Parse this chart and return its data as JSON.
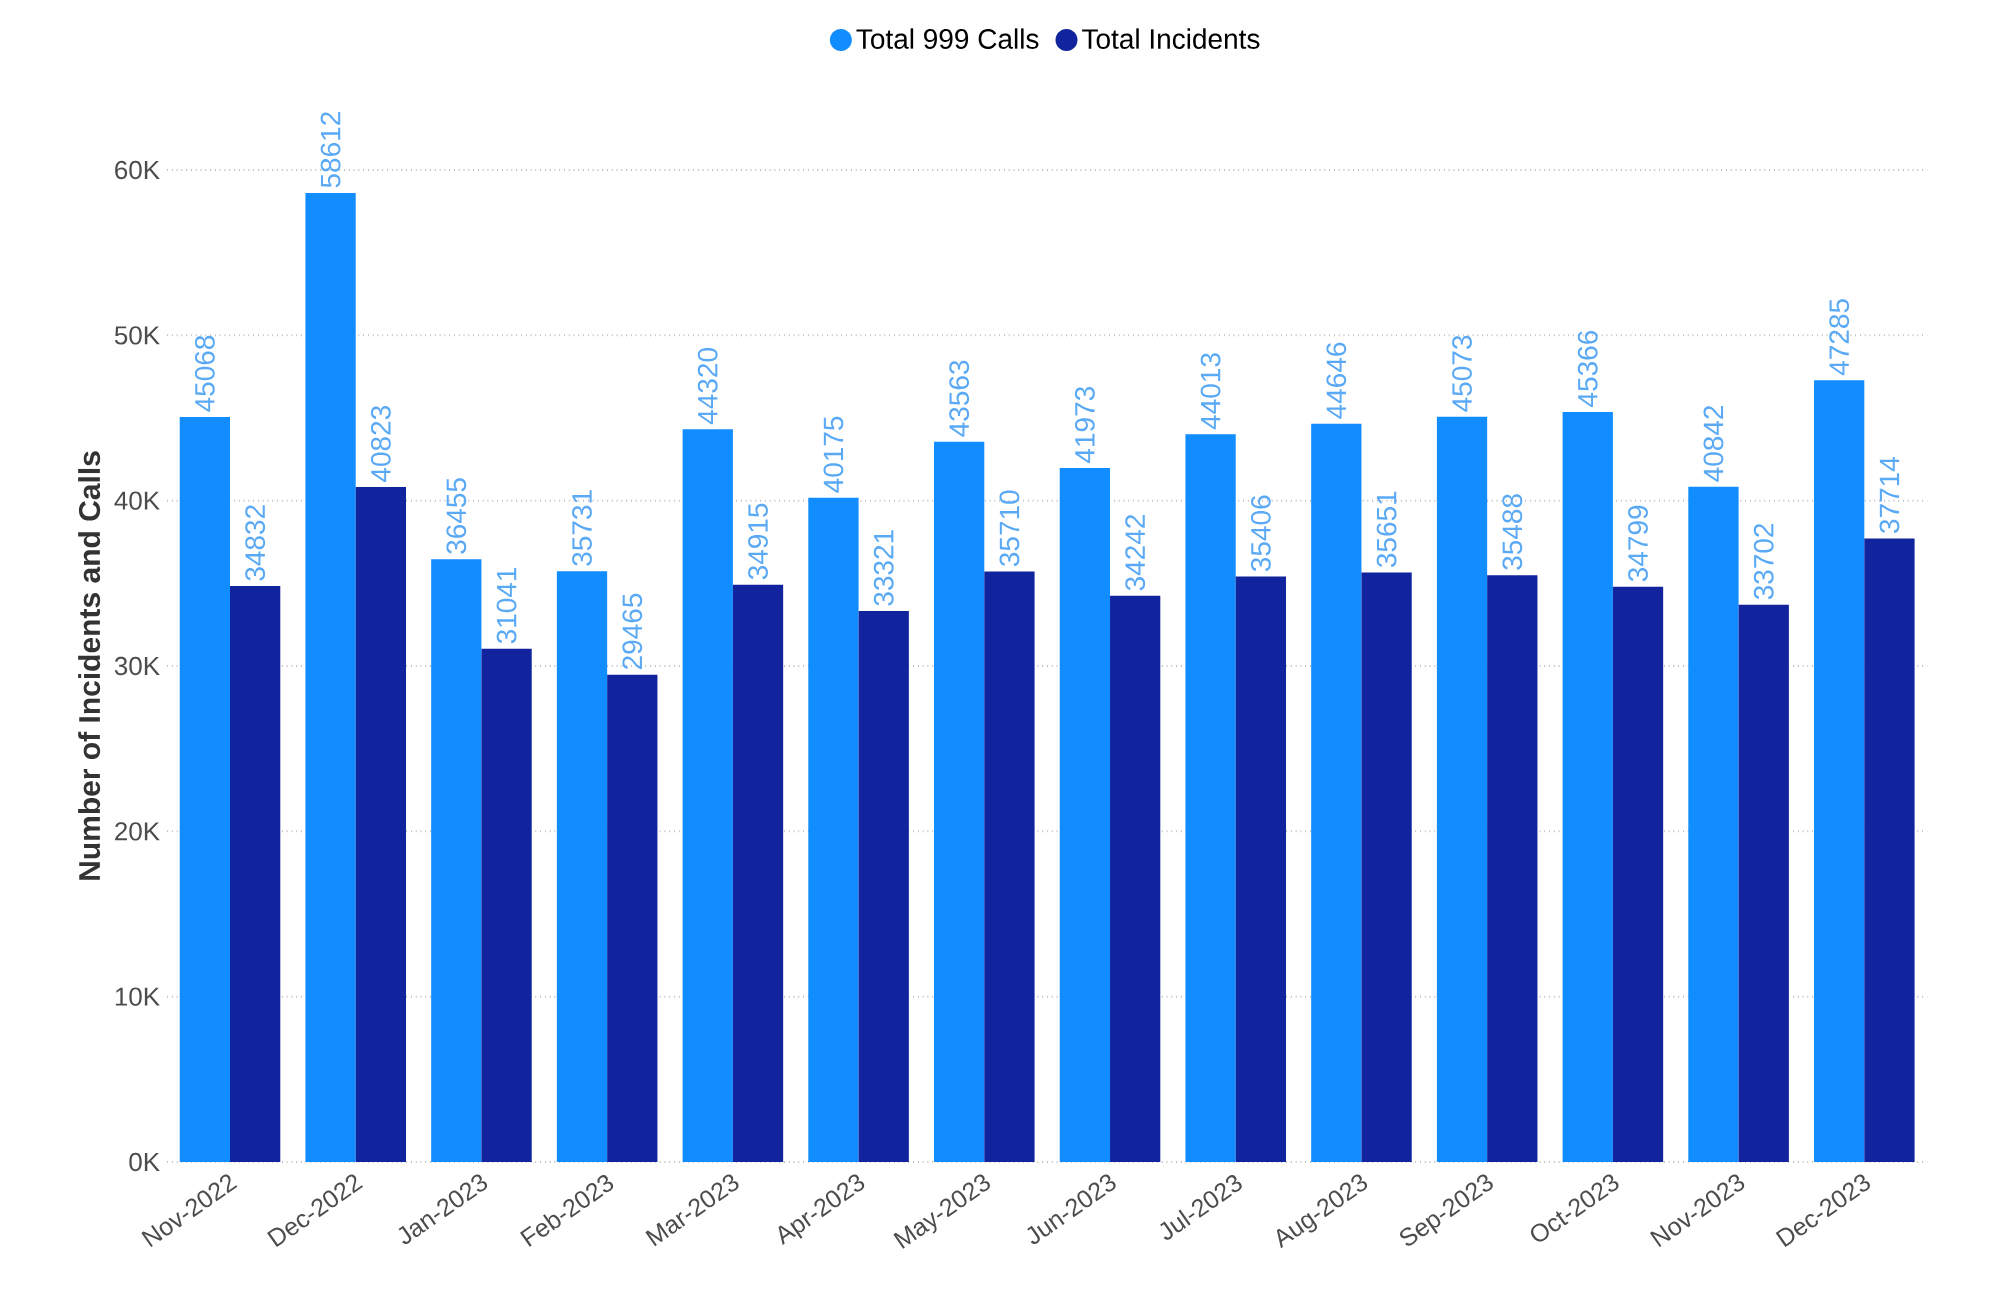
{
  "chart_data": {
    "type": "bar",
    "ylabel": "Number of Incidents and Calls",
    "categories": [
      "Nov-2022",
      "Dec-2022",
      "Jan-2023",
      "Feb-2023",
      "Mar-2023",
      "Apr-2023",
      "May-2023",
      "Jun-2023",
      "Jul-2023",
      "Aug-2023",
      "Sep-2023",
      "Oct-2023",
      "Nov-2023",
      "Dec-2023"
    ],
    "series": [
      {
        "name": "Total 999 Calls",
        "color": "#118dff",
        "values": [
          45068,
          58612,
          36455,
          35731,
          44320,
          40175,
          43563,
          41973,
          44013,
          44646,
          45073,
          45366,
          40842,
          47285
        ]
      },
      {
        "name": "Total Incidents",
        "color": "#12239e",
        "values": [
          34832,
          40823,
          31041,
          29465,
          34915,
          33321,
          35710,
          34242,
          35406,
          35651,
          35488,
          34799,
          33702,
          37714
        ]
      }
    ],
    "ylim": [
      0,
      60000
    ],
    "yticks": [
      {
        "value": 0,
        "label": "0K"
      },
      {
        "value": 10000,
        "label": "10K"
      },
      {
        "value": 20000,
        "label": "20K"
      },
      {
        "value": 30000,
        "label": "30K"
      },
      {
        "value": 40000,
        "label": "40K"
      },
      {
        "value": 50000,
        "label": "50K"
      },
      {
        "value": 60000,
        "label": "60K"
      }
    ],
    "grid": "y",
    "legend": "top",
    "data_labels": true
  }
}
